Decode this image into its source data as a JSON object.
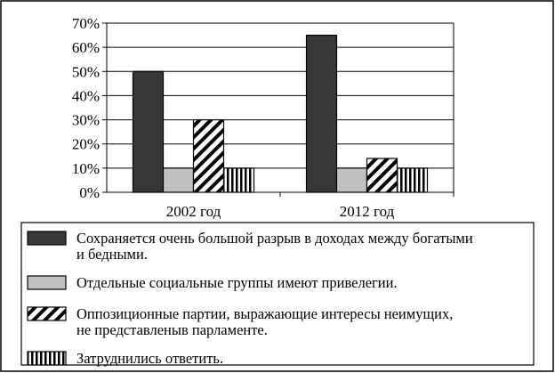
{
  "chart_data": {
    "type": "bar",
    "title": "",
    "xlabel": "",
    "ylabel": "",
    "categories": [
      "2002 год",
      "2012 год"
    ],
    "ylim": [
      0,
      70
    ],
    "yticks": [
      "0%",
      "10%",
      "20%",
      "30%",
      "40%",
      "50%",
      "60%",
      "70%"
    ],
    "grid": true,
    "legend_position": "bottom",
    "series": [
      {
        "name": "Сохраняется очень большой разрыв в доходах между богатыми и бедными.",
        "lines": [
          "Сохраняется очень большой разрыв в доходах между богатыми",
          "и бедными."
        ],
        "values": [
          50,
          65
        ],
        "pattern": "solid-dark",
        "color": "#383838"
      },
      {
        "name": "Отдельные социальные группы имеют привелегии.",
        "lines": [
          "Отдельные социальные группы имеют привелегии."
        ],
        "values": [
          10,
          10
        ],
        "pattern": "solid-light",
        "color": "#c0c0c0"
      },
      {
        "name": "Оппозиционные партии, выражающие интересы неимущих, не представленыв парламенте.",
        "lines": [
          "Оппозиционные партии, выражающие интересы неимущих,",
          "не представленыв парламенте."
        ],
        "values": [
          30,
          14
        ],
        "pattern": "diagonal",
        "color": "#000000"
      },
      {
        "name": "Затруднились ответить.",
        "lines": [
          "Затруднились ответить."
        ],
        "values": [
          10,
          10
        ],
        "pattern": "vertical",
        "color": "#000000"
      }
    ]
  }
}
